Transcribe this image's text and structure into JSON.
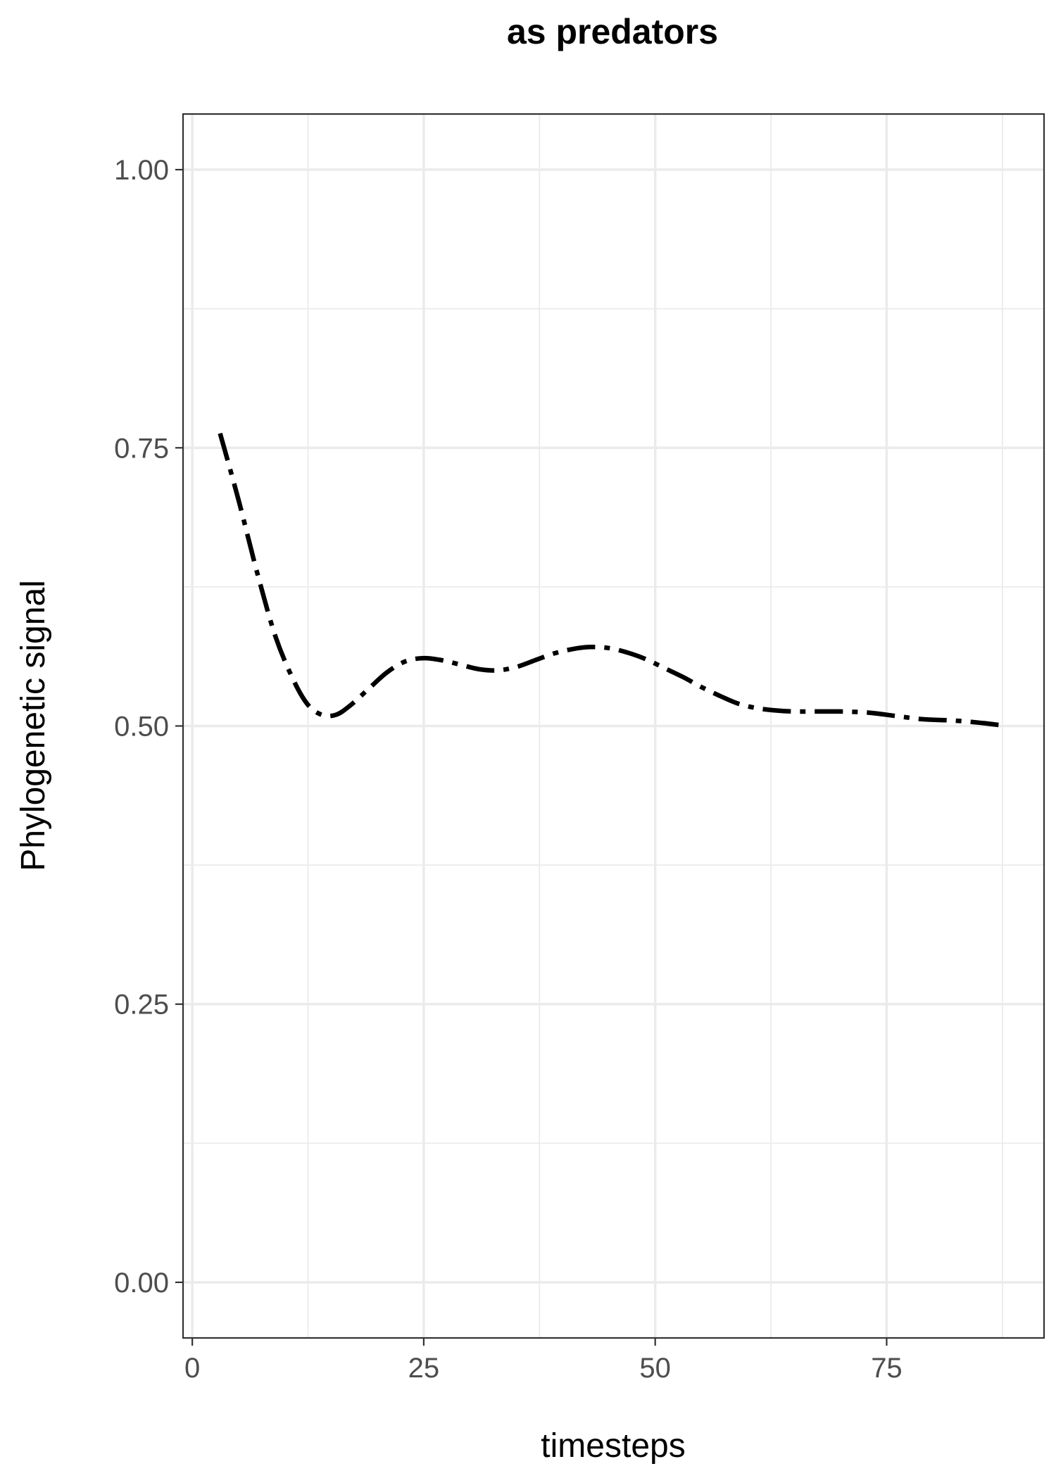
{
  "chart_data": {
    "type": "line",
    "title": "as predators",
    "xlabel": "timesteps",
    "ylabel": "Phylogenetic signal",
    "xlim": [
      -1,
      92
    ],
    "ylim": [
      -0.05,
      1.05
    ],
    "x_ticks": [
      0,
      25,
      50,
      75
    ],
    "x_tick_labels": [
      "0",
      "25",
      "50",
      "75"
    ],
    "y_ticks": [
      0,
      0.25,
      0.5,
      0.75,
      1
    ],
    "y_tick_labels": [
      "0.00",
      "0.25",
      "0.50",
      "0.75",
      "1.00"
    ],
    "grid": true,
    "legend": "none",
    "series": [
      {
        "line_style": "dashdot",
        "color": "#000000",
        "x": [
          3,
          5,
          7,
          9,
          11,
          12.5,
          14,
          15.5,
          17,
          19,
          21,
          23,
          25,
          27,
          29,
          31,
          33,
          35,
          37,
          39,
          41,
          43,
          45,
          47,
          49,
          51,
          53,
          55,
          57,
          59,
          61,
          63,
          65,
          67,
          70,
          73,
          76,
          79,
          82,
          85,
          88
        ],
        "y": [
          0.763,
          0.703,
          0.638,
          0.58,
          0.54,
          0.519,
          0.51,
          0.51,
          0.518,
          0.533,
          0.548,
          0.558,
          0.561,
          0.559,
          0.555,
          0.551,
          0.55,
          0.553,
          0.559,
          0.565,
          0.569,
          0.571,
          0.57,
          0.566,
          0.56,
          0.552,
          0.544,
          0.535,
          0.527,
          0.52,
          0.516,
          0.514,
          0.513,
          0.513,
          0.513,
          0.512,
          0.509,
          0.506,
          0.505,
          0.503,
          0.5
        ]
      }
    ]
  }
}
